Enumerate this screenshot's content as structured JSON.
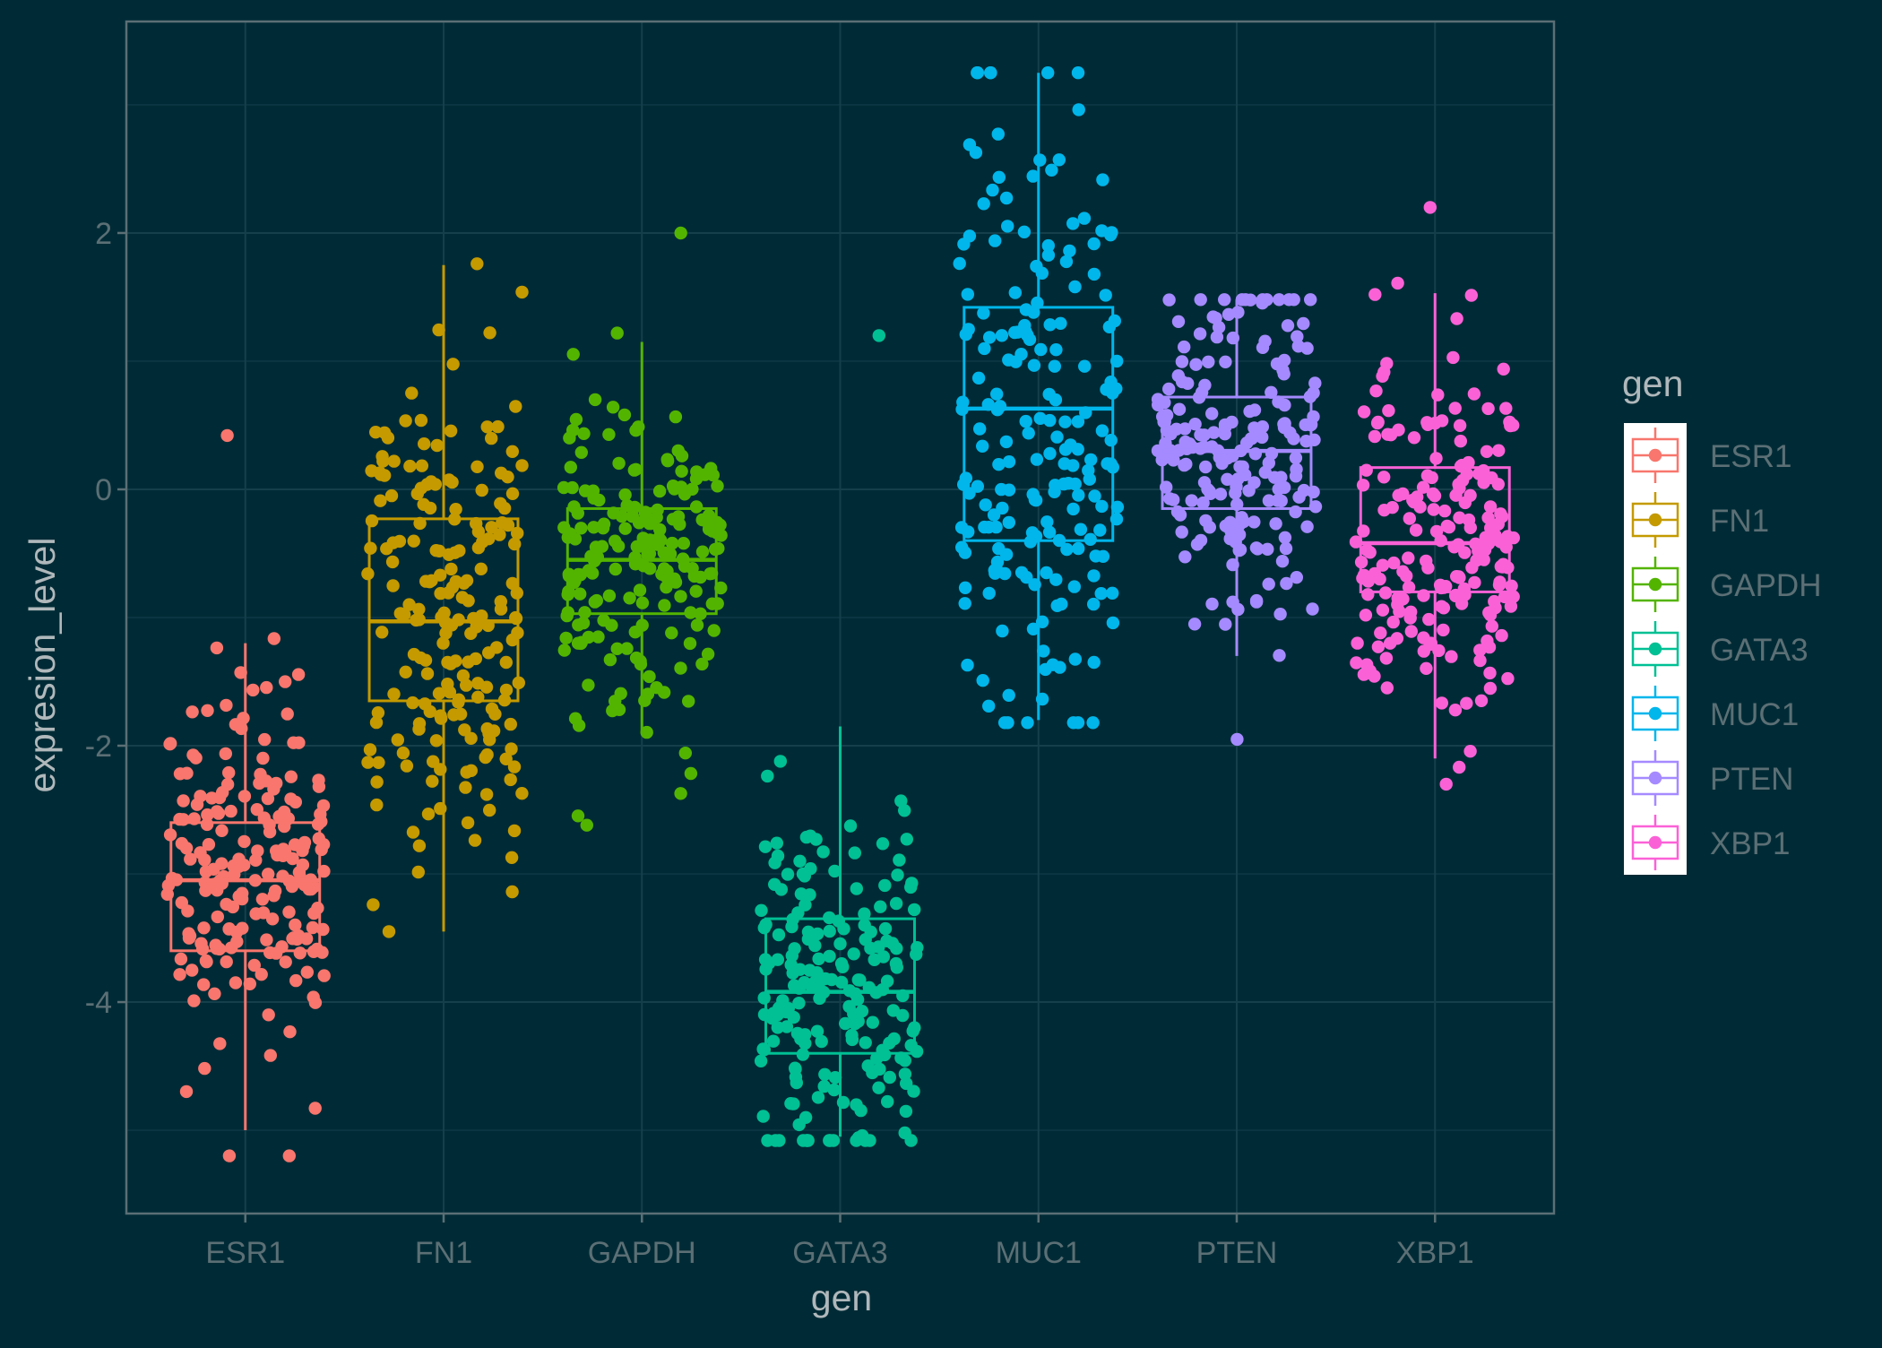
{
  "chart_data": {
    "type": "boxplot",
    "xlabel": "gen",
    "ylabel": "expresion_level",
    "categories": [
      "ESR1",
      "FN1",
      "GAPDH",
      "GATA3",
      "MUC1",
      "PTEN",
      "XBP1"
    ],
    "yticks": [
      -4,
      -2,
      0,
      2
    ],
    "ytick_labels": [
      "-4",
      "-2",
      "0",
      "2"
    ],
    "ylim": [
      -5.65,
      3.65
    ],
    "grid": true,
    "jitter_points": true,
    "colors": {
      "ESR1": "#f8766d",
      "FN1": "#c49a00",
      "GAPDH": "#53b400",
      "GATA3": "#00c094",
      "MUC1": "#00b6eb",
      "PTEN": "#a58aff",
      "XBP1": "#fb61d7"
    },
    "series": [
      {
        "name": "ESR1",
        "n": 200,
        "whisker_low": -5.0,
        "q1": -3.6,
        "median": -3.05,
        "q3": -2.6,
        "whisker_high": -1.2,
        "points_min": -5.2,
        "points_max": 0.42
      },
      {
        "name": "FN1",
        "n": 200,
        "whisker_low": -3.45,
        "q1": -1.65,
        "median": -1.03,
        "q3": -0.23,
        "whisker_high": 1.75,
        "points_min": -3.45,
        "points_max": 1.76
      },
      {
        "name": "GAPDH",
        "n": 200,
        "whisker_low": -1.9,
        "q1": -0.97,
        "median": -0.55,
        "q3": -0.15,
        "whisker_high": 1.15,
        "points_min": -2.62,
        "points_max": 2.0
      },
      {
        "name": "GATA3",
        "n": 200,
        "whisker_low": -5.05,
        "q1": -4.4,
        "median": -3.92,
        "q3": -3.35,
        "whisker_high": -1.85,
        "points_min": -5.08,
        "points_max": 1.2
      },
      {
        "name": "MUC1",
        "n": 200,
        "whisker_low": -1.8,
        "q1": -0.4,
        "median": 0.63,
        "q3": 1.42,
        "whisker_high": 3.25,
        "points_min": -1.82,
        "points_max": 3.25
      },
      {
        "name": "PTEN",
        "n": 200,
        "whisker_low": -1.3,
        "q1": -0.15,
        "median": 0.3,
        "q3": 0.72,
        "whisker_high": 1.48,
        "points_min": -1.95,
        "points_max": 1.48
      },
      {
        "name": "XBP1",
        "n": 200,
        "whisker_low": -2.1,
        "q1": -0.8,
        "median": -0.42,
        "q3": 0.17,
        "whisker_high": 1.53,
        "points_min": -2.3,
        "points_max": 2.2
      }
    ]
  }
}
